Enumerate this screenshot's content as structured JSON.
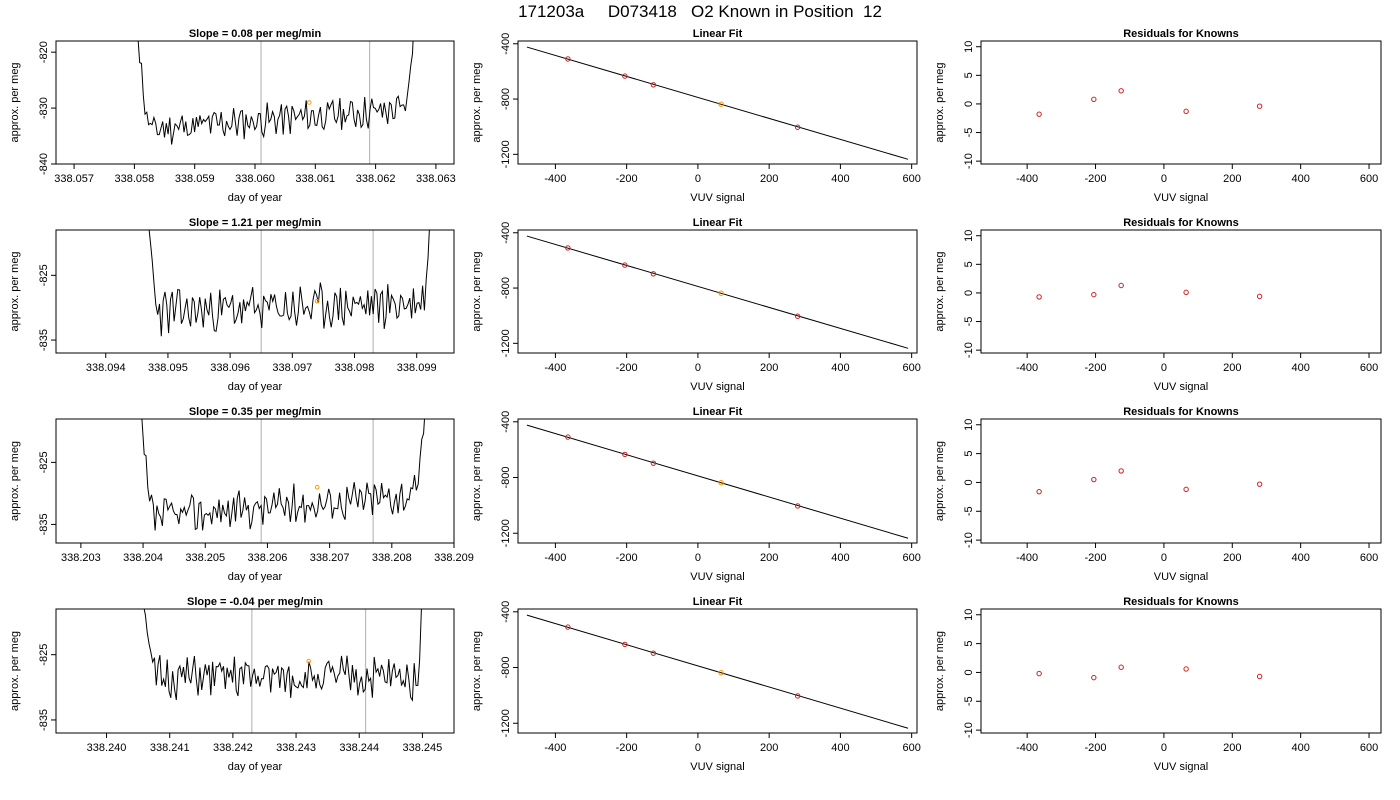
{
  "title": "171203a     D073418   O2 Known in Position  12",
  "colors": {
    "line": "#000000",
    "point": "#cc2222",
    "highlight": "#ff9900",
    "vline": "#bbbbbb",
    "frame": "#000000"
  },
  "chart_data": [
    {
      "type": "line",
      "row": 1,
      "panel": "trace",
      "title": "Slope =  0.08  per meg/min",
      "xlabel": "day of year",
      "ylabel": "approx. per meg",
      "xlim": [
        338.0567,
        338.0633
      ],
      "ylim": [
        -840,
        -818
      ],
      "xticks": [
        338.057,
        338.058,
        338.059,
        338.06,
        338.061,
        338.062,
        338.063
      ],
      "xtick_labels": [
        "338.057",
        "338.058",
        "338.059",
        "338.060",
        "338.061",
        "338.062",
        "338.063"
      ],
      "yticks": [
        -840,
        -830,
        -820
      ],
      "ytick_labels": [
        "-840",
        "-830",
        "-820"
      ],
      "vlines": [
        338.0601,
        338.0619
      ],
      "highlight": [
        338.0609,
        -829
      ],
      "x_start": 338.058,
      "x_end": 338.0627,
      "base": -832,
      "trend": 4,
      "wiggle": 1.5,
      "seed": 11
    },
    {
      "type": "line",
      "row": 1,
      "panel": "fit",
      "title": "Linear Fit",
      "xlabel": "VUV signal",
      "ylabel": "approx. per meg",
      "xlim": [
        -505,
        615
      ],
      "ylim": [
        -1270,
        -380
      ],
      "xticks": [
        -400,
        -200,
        0,
        200,
        400,
        600
      ],
      "xtick_labels": [
        "-400",
        "-200",
        "0",
        "200",
        "400",
        "600"
      ],
      "yticks": [
        -1200,
        -800,
        -400
      ],
      "ytick_labels": [
        "-1200",
        "-800",
        "-400"
      ],
      "line": {
        "x": [
          -480,
          590
        ],
        "y": [
          -424,
          -1236
        ]
      },
      "points": {
        "x": [
          -365,
          -205,
          -125,
          65,
          280
        ],
        "y": [
          -510,
          -634,
          -697,
          -837,
          -1004
        ]
      },
      "highlight_index": 3
    },
    {
      "type": "scatter",
      "row": 1,
      "panel": "resid",
      "title": "Residuals for Knowns",
      "xlabel": "VUV signal",
      "ylabel": "approx. per meg",
      "xlim": [
        -535,
        635
      ],
      "ylim": [
        -10.5,
        11
      ],
      "xticks": [
        -400,
        -200,
        0,
        200,
        400,
        600
      ],
      "xtick_labels": [
        "-400",
        "-200",
        "0",
        "200",
        "400",
        "600"
      ],
      "yticks": [
        -10,
        -5,
        0,
        5,
        10
      ],
      "ytick_labels": [
        "-10",
        "-5",
        "0",
        "5",
        "10"
      ],
      "points": {
        "x": [
          -365,
          -205,
          -125,
          65,
          280
        ],
        "y": [
          -1.8,
          0.8,
          2.3,
          -1.3,
          -0.4
        ]
      }
    },
    {
      "type": "line",
      "row": 2,
      "panel": "trace",
      "title": "Slope =  1.21  per meg/min",
      "xlabel": "day of year",
      "ylabel": "approx. per meg",
      "xlim": [
        338.0932,
        338.0996
      ],
      "ylim": [
        -837,
        -818
      ],
      "xticks": [
        338.094,
        338.095,
        338.096,
        338.097,
        338.098,
        338.099
      ],
      "xtick_labels": [
        "338.094",
        "338.095",
        "338.096",
        "338.097",
        "338.098",
        "338.099"
      ],
      "yticks": [
        -835,
        -825
      ],
      "ytick_labels": [
        "-835",
        "-825"
      ],
      "vlines": [
        338.0965,
        338.0983
      ],
      "highlight": [
        338.0974,
        -829
      ],
      "x_start": 338.0946,
      "x_end": 338.0993,
      "base": -830,
      "trend": 1.5,
      "wiggle": 1.8,
      "seed": 23
    },
    {
      "type": "line",
      "row": 2,
      "panel": "fit",
      "title": "Linear Fit",
      "xlabel": "VUV signal",
      "ylabel": "approx. per meg",
      "xlim": [
        -505,
        615
      ],
      "ylim": [
        -1270,
        -380
      ],
      "xticks": [
        -400,
        -200,
        0,
        200,
        400,
        600
      ],
      "xtick_labels": [
        "-400",
        "-200",
        "0",
        "200",
        "400",
        "600"
      ],
      "yticks": [
        -1200,
        -800,
        -400
      ],
      "ytick_labels": [
        "-1200",
        "-800",
        "-400"
      ],
      "line": {
        "x": [
          -480,
          590
        ],
        "y": [
          -424,
          -1236
        ]
      },
      "points": {
        "x": [
          -365,
          -205,
          -125,
          65,
          280
        ],
        "y": [
          -510,
          -634,
          -697,
          -837,
          -1004
        ]
      },
      "highlight_index": 3
    },
    {
      "type": "scatter",
      "row": 2,
      "panel": "resid",
      "title": "Residuals for Knowns",
      "xlabel": "VUV signal",
      "ylabel": "approx. per meg",
      "xlim": [
        -535,
        635
      ],
      "ylim": [
        -10.5,
        11
      ],
      "xticks": [
        -400,
        -200,
        0,
        200,
        400,
        600
      ],
      "xtick_labels": [
        "-400",
        "-200",
        "0",
        "200",
        "400",
        "600"
      ],
      "yticks": [
        -10,
        -5,
        0,
        5,
        10
      ],
      "ytick_labels": [
        "-10",
        "-5",
        "0",
        "5",
        "10"
      ],
      "points": {
        "x": [
          -365,
          -205,
          -125,
          65,
          280
        ],
        "y": [
          -0.7,
          -0.3,
          1.3,
          0.1,
          -0.6
        ]
      }
    },
    {
      "type": "line",
      "row": 3,
      "panel": "trace",
      "title": "Slope =  0.35  per meg/min",
      "xlabel": "day of year",
      "ylabel": "approx. per meg",
      "xlim": [
        338.2026,
        338.209
      ],
      "ylim": [
        -838,
        -818
      ],
      "xticks": [
        338.203,
        338.204,
        338.205,
        338.206,
        338.207,
        338.208,
        338.209
      ],
      "xtick_labels": [
        "338.203",
        "338.204",
        "338.205",
        "338.206",
        "338.207",
        "338.208",
        "338.209"
      ],
      "yticks": [
        -835,
        -825
      ],
      "ytick_labels": [
        "-835",
        "-825"
      ],
      "vlines": [
        338.2059,
        338.2077
      ],
      "highlight": [
        338.2068,
        -829
      ],
      "x_start": 338.2039,
      "x_end": 338.2086,
      "base": -832,
      "trend": 4,
      "wiggle": 1.6,
      "seed": 37
    },
    {
      "type": "line",
      "row": 3,
      "panel": "fit",
      "title": "Linear Fit",
      "xlabel": "VUV signal",
      "ylabel": "approx. per meg",
      "xlim": [
        -505,
        615
      ],
      "ylim": [
        -1270,
        -380
      ],
      "xticks": [
        -400,
        -200,
        0,
        200,
        400,
        600
      ],
      "xtick_labels": [
        "-400",
        "-200",
        "0",
        "200",
        "400",
        "600"
      ],
      "yticks": [
        -1200,
        -800,
        -400
      ],
      "ytick_labels": [
        "-1200",
        "-800",
        "-400"
      ],
      "line": {
        "x": [
          -480,
          590
        ],
        "y": [
          -424,
          -1236
        ]
      },
      "points": {
        "x": [
          -365,
          -205,
          -125,
          65,
          280
        ],
        "y": [
          -510,
          -634,
          -697,
          -837,
          -1004
        ]
      },
      "highlight_index": 3
    },
    {
      "type": "scatter",
      "row": 3,
      "panel": "resid",
      "title": "Residuals for Knowns",
      "xlabel": "VUV signal",
      "ylabel": "approx. per meg",
      "xlim": [
        -535,
        635
      ],
      "ylim": [
        -10.5,
        11
      ],
      "xticks": [
        -400,
        -200,
        0,
        200,
        400,
        600
      ],
      "xtick_labels": [
        "-400",
        "-200",
        "0",
        "200",
        "400",
        "600"
      ],
      "yticks": [
        -10,
        -5,
        0,
        5,
        10
      ],
      "ytick_labels": [
        "-10",
        "-5",
        "0",
        "5",
        "10"
      ],
      "points": {
        "x": [
          -365,
          -205,
          -125,
          65,
          280
        ],
        "y": [
          -1.6,
          0.5,
          2.0,
          -1.2,
          -0.3
        ]
      }
    },
    {
      "type": "line",
      "row": 4,
      "panel": "trace",
      "title": "Slope =  -0.04  per meg/min",
      "xlabel": "day of year",
      "ylabel": "approx. per meg",
      "xlim": [
        338.2392,
        338.2455
      ],
      "ylim": [
        -837,
        -818
      ],
      "xticks": [
        338.24,
        338.241,
        338.242,
        338.243,
        338.244,
        338.245
      ],
      "xtick_labels": [
        "338.240",
        "338.241",
        "338.242",
        "338.243",
        "338.244",
        "338.245"
      ],
      "yticks": [
        -835,
        -825
      ],
      "ytick_labels": [
        "-835",
        "-825"
      ],
      "vlines": [
        338.2423,
        338.2441
      ],
      "highlight": [
        338.2432,
        -826
      ],
      "x_start": 338.2405,
      "x_end": 338.2451,
      "base": -828.5,
      "trend": 0,
      "wiggle": 1.7,
      "seed": 51
    },
    {
      "type": "line",
      "row": 4,
      "panel": "fit",
      "title": "Linear Fit",
      "xlabel": "VUV signal",
      "ylabel": "approx. per meg",
      "xlim": [
        -505,
        615
      ],
      "ylim": [
        -1270,
        -380
      ],
      "xticks": [
        -400,
        -200,
        0,
        200,
        400,
        600
      ],
      "xtick_labels": [
        "-400",
        "-200",
        "0",
        "200",
        "400",
        "600"
      ],
      "yticks": [
        -1200,
        -800,
        -400
      ],
      "ytick_labels": [
        "-1200",
        "-800",
        "-400"
      ],
      "line": {
        "x": [
          -480,
          590
        ],
        "y": [
          -424,
          -1236
        ]
      },
      "points": {
        "x": [
          -365,
          -205,
          -125,
          65,
          280
        ],
        "y": [
          -510,
          -634,
          -697,
          -837,
          -1004
        ]
      },
      "highlight_index": 3
    },
    {
      "type": "scatter",
      "row": 4,
      "panel": "resid",
      "title": "Residuals for Knowns",
      "xlabel": "VUV signal",
      "ylabel": "approx. per meg",
      "xlim": [
        -535,
        635
      ],
      "ylim": [
        -10.5,
        11
      ],
      "xticks": [
        -400,
        -200,
        0,
        200,
        400,
        600
      ],
      "xtick_labels": [
        "-400",
        "-200",
        "0",
        "200",
        "400",
        "600"
      ],
      "yticks": [
        -10,
        -5,
        0,
        5,
        10
      ],
      "ytick_labels": [
        "-10",
        "-5",
        "0",
        "5",
        "10"
      ],
      "points": {
        "x": [
          -365,
          -205,
          -125,
          65,
          280
        ],
        "y": [
          -0.2,
          -0.9,
          0.9,
          0.6,
          -0.7
        ]
      }
    }
  ]
}
